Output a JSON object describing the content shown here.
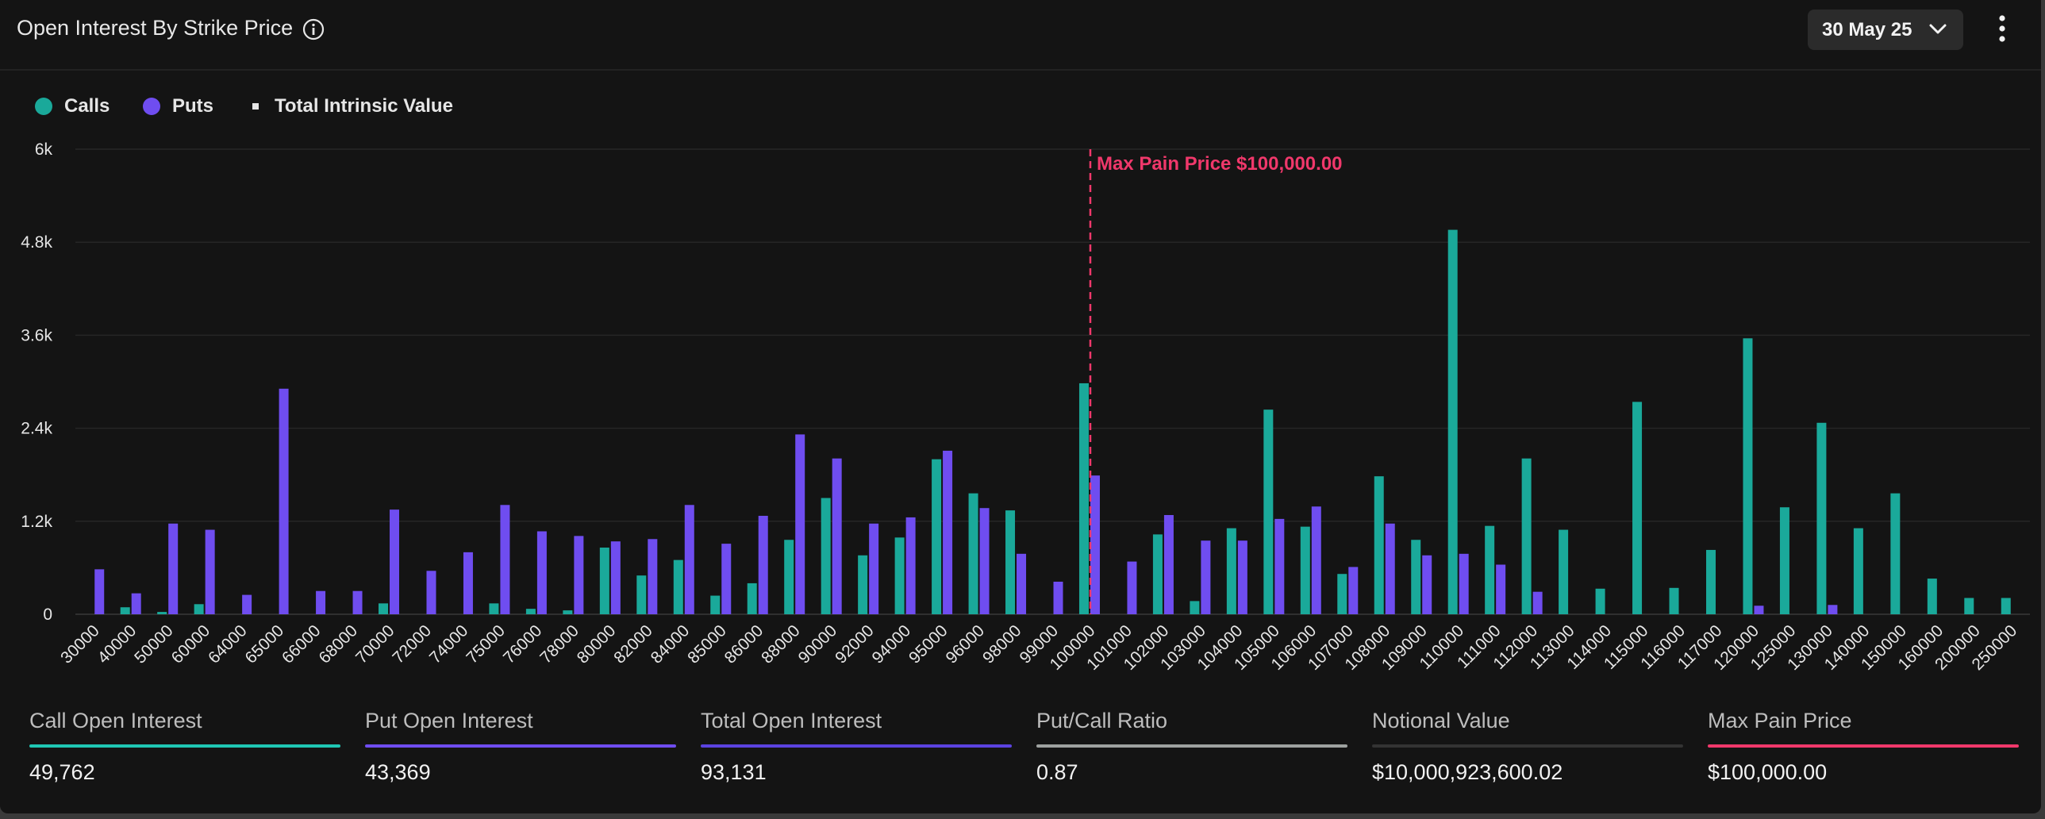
{
  "header": {
    "title": "Open Interest By Strike Price",
    "date_select": "30 May 25"
  },
  "legend": {
    "calls": "Calls",
    "puts": "Puts",
    "intrinsic": "Total Intrinsic Value"
  },
  "colors": {
    "calls": "#1aa99a",
    "puts": "#6f4df0",
    "max_pain": "#f0386b",
    "notional": "#3a3a3a",
    "ratio": "#9ea2a0"
  },
  "chart_data": {
    "type": "bar",
    "title": "Open Interest By Strike Price",
    "xlabel": "",
    "ylabel": "",
    "ylim": [
      0,
      6000
    ],
    "yticks": [
      0,
      1200,
      2400,
      3600,
      4800,
      6000
    ],
    "ytick_labels": [
      "0",
      "1.2k",
      "2.4k",
      "3.6k",
      "4.8k",
      "6k"
    ],
    "categories": [
      "30000",
      "40000",
      "50000",
      "60000",
      "64000",
      "65000",
      "66000",
      "68000",
      "70000",
      "72000",
      "74000",
      "75000",
      "76000",
      "78000",
      "80000",
      "82000",
      "84000",
      "85000",
      "86000",
      "88000",
      "90000",
      "92000",
      "94000",
      "95000",
      "96000",
      "98000",
      "99000",
      "100000",
      "101000",
      "102000",
      "103000",
      "104000",
      "105000",
      "106000",
      "107000",
      "108000",
      "109000",
      "110000",
      "111000",
      "112000",
      "113000",
      "114000",
      "115000",
      "116000",
      "117000",
      "120000",
      "125000",
      "130000",
      "140000",
      "150000",
      "160000",
      "200000",
      "250000"
    ],
    "series": [
      {
        "name": "Calls",
        "values": [
          0,
          90,
          30,
          130,
          0,
          0,
          0,
          0,
          140,
          0,
          0,
          140,
          70,
          50,
          860,
          500,
          700,
          240,
          400,
          960,
          1500,
          760,
          990,
          2000,
          1560,
          1340,
          0,
          2980,
          0,
          1030,
          170,
          1110,
          2640,
          1130,
          520,
          1780,
          960,
          4960,
          1140,
          2010,
          1090,
          330,
          2740,
          340,
          830,
          3560,
          1380,
          2470,
          1110,
          1560,
          460,
          210,
          210
        ]
      },
      {
        "name": "Puts",
        "values": [
          580,
          270,
          1170,
          1090,
          250,
          2910,
          300,
          300,
          1350,
          560,
          800,
          1410,
          1070,
          1010,
          940,
          970,
          1410,
          910,
          1270,
          2320,
          2010,
          1170,
          1250,
          2110,
          1370,
          780,
          420,
          1790,
          680,
          1280,
          950,
          950,
          1230,
          1390,
          610,
          1170,
          760,
          780,
          640,
          290,
          0,
          0,
          0,
          0,
          0,
          110,
          0,
          120,
          0,
          0,
          0,
          0,
          0
        ]
      }
    ],
    "max_pain": {
      "category": "100000",
      "label": "Max Pain Price $100,000.00"
    },
    "legend_position": "top-left",
    "grid": true
  },
  "stats": [
    {
      "label": "Call Open Interest",
      "value": "49,762",
      "color": "#1fc7b4"
    },
    {
      "label": "Put Open Interest",
      "value": "43,369",
      "color": "#6f4df0"
    },
    {
      "label": "Total Open Interest",
      "value": "93,131",
      "color": "#5b43e0"
    },
    {
      "label": "Put/Call Ratio",
      "value": "0.87",
      "color": "#9ea2a0"
    },
    {
      "label": "Notional Value",
      "value": "$10,000,923,600.02",
      "color": "#333333"
    },
    {
      "label": "Max Pain Price",
      "value": "$100,000.00",
      "color": "#f0386b"
    }
  ]
}
